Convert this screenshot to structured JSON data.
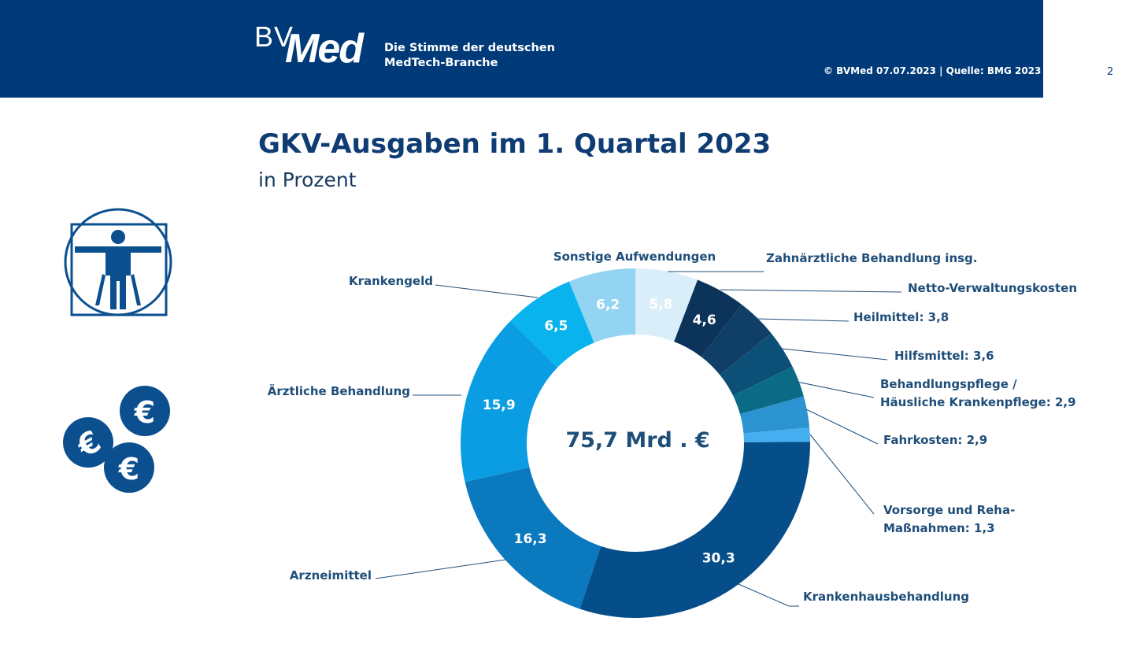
{
  "header": {
    "logo_bv": "BV",
    "logo_med": "Med",
    "tagline_line1": "Die Stimme der deutschen",
    "tagline_line2": "MedTech-Branche",
    "copyright": "© BVMed 07.07.2023 | Quelle: BMG 2023",
    "page_number": "2"
  },
  "icons": [
    "vitruvian-man-icon",
    "euro-coins-icon"
  ],
  "chart_data": {
    "type": "pie",
    "title": "GKV-Ausgaben im 1. Quartal 2023",
    "subtitle": "in Prozent",
    "center_label": "75,7 Mrd . €",
    "slices": [
      {
        "value": 5.8,
        "value_label": "5,8",
        "label": [
          "Zahnärztliche Behandlung insg."
        ],
        "color": "#daeef9"
      },
      {
        "value": 4.6,
        "value_label": "4,6",
        "label": [
          "Netto-Verwaltungskosten"
        ],
        "color": "#0c3359"
      },
      {
        "value": 3.8,
        "value_label": "",
        "label": [
          "Heilmittel: 3,8"
        ],
        "color": "#0f3f66"
      },
      {
        "value": 3.6,
        "value_label": "",
        "label": [
          "Hilfsmittel: 3,6"
        ],
        "color": "#0c5078"
      },
      {
        "value": 2.9,
        "value_label": "",
        "label": [
          "Behandlungspflege /",
          "Häusliche Krankenpflege: 2,9"
        ],
        "color": "#0b6a86"
      },
      {
        "value": 2.9,
        "value_label": "",
        "label": [
          "Fahrkosten: 2,9"
        ],
        "color": "#2c94d0"
      },
      {
        "value": 1.3,
        "value_label": "",
        "label": [
          "Vorsorge und Reha-",
          "Maßnahmen: 1,3"
        ],
        "color": "#44aef0"
      },
      {
        "value": 30.3,
        "value_label": "30,3",
        "label": [
          "Krankenhausbehandlung"
        ],
        "color": "#064e8a"
      },
      {
        "value": 16.3,
        "value_label": "16,3",
        "label": [
          "Arzneimittel"
        ],
        "color": "#0a79be"
      },
      {
        "value": 15.9,
        "value_label": "15,9",
        "label": [
          "Ärztliche Behandlung"
        ],
        "color": "#0a9de3"
      },
      {
        "value": 6.5,
        "value_label": "6,5",
        "label": [
          "Krankengeld"
        ],
        "color": "#08b3ee"
      },
      {
        "value": 6.2,
        "value_label": "6,2",
        "label": [
          "Sonstige Aufwendungen"
        ],
        "color": "#92d4f1"
      }
    ]
  }
}
